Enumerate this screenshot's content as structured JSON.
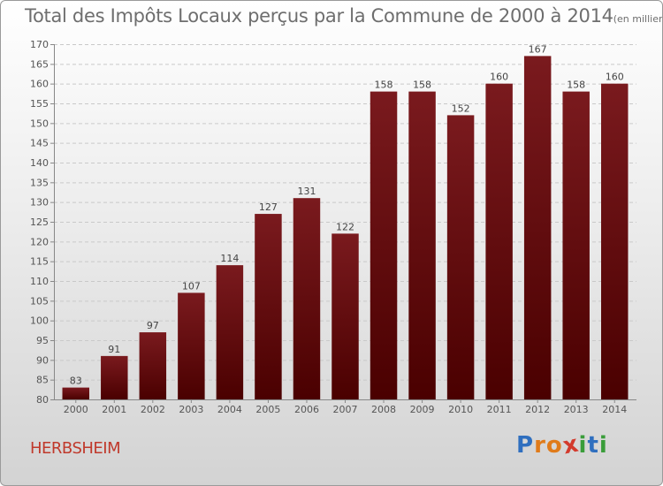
{
  "header": {
    "title": "Total des Impôts Locaux perçus par la Commune de 2000 à 2014",
    "unit": "(en milliers d'€)"
  },
  "footer": {
    "commune": "HERBSHEIM",
    "logo_letters": [
      "P",
      "r",
      "o",
      "x",
      "i",
      "t",
      "i"
    ],
    "logo_colors": [
      "#2f6fbf",
      "#e07b1a",
      "#e07b1a",
      "#d33a2c",
      "#3a9d3a",
      "#2f6fbf",
      "#3a9d3a"
    ]
  },
  "chart_data": {
    "type": "bar",
    "title": "Total des Impôts Locaux perçus par la Commune de 2000 à 2014",
    "unit": "(en milliers d'€)",
    "xlabel": "",
    "ylabel": "",
    "categories": [
      "2000",
      "2001",
      "2002",
      "2003",
      "2004",
      "2005",
      "2006",
      "2007",
      "2008",
      "2009",
      "2010",
      "2011",
      "2012",
      "2013",
      "2014"
    ],
    "values": [
      83,
      91,
      97,
      107,
      114,
      127,
      131,
      122,
      158,
      158,
      152,
      160,
      167,
      158,
      160
    ],
    "ylim": [
      80,
      170
    ],
    "yticks": [
      80,
      85,
      90,
      95,
      100,
      105,
      110,
      115,
      120,
      125,
      130,
      135,
      140,
      145,
      150,
      155,
      160,
      165,
      170
    ],
    "grid": true,
    "bar_color": "#7a1a1e",
    "bar_color_dark": "#4a0000"
  }
}
